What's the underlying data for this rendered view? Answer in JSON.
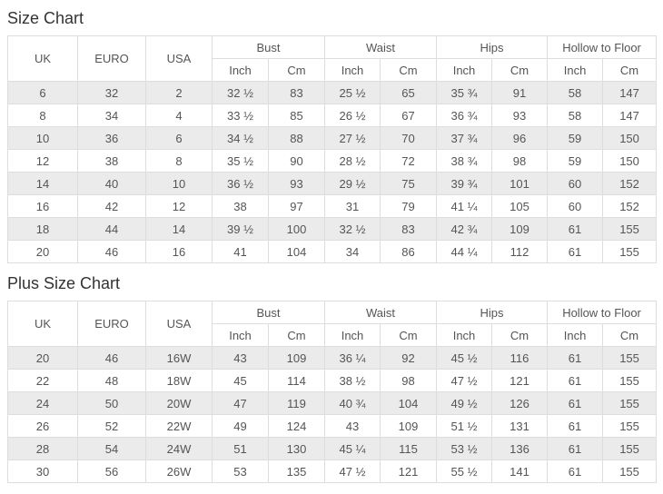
{
  "colors": {
    "background": "#ffffff",
    "stripe": "#ebebeb",
    "border": "#dddddd",
    "cell_text": "#555555",
    "title_text": "#333333"
  },
  "headers": {
    "uk": "UK",
    "euro": "EURO",
    "usa": "USA",
    "bust": "Bust",
    "waist": "Waist",
    "hips": "Hips",
    "hollow_to_floor": "Hollow to Floor",
    "inch": "Inch",
    "cm": "Cm"
  },
  "size_chart": {
    "title": "Size Chart",
    "rows": [
      [
        "6",
        "32",
        "2",
        "32 ½",
        "83",
        "25 ½",
        "65",
        "35 ¾",
        "91",
        "58",
        "147"
      ],
      [
        "8",
        "34",
        "4",
        "33 ½",
        "85",
        "26 ½",
        "67",
        "36 ¾",
        "93",
        "58",
        "147"
      ],
      [
        "10",
        "36",
        "6",
        "34 ½",
        "88",
        "27 ½",
        "70",
        "37 ¾",
        "96",
        "59",
        "150"
      ],
      [
        "12",
        "38",
        "8",
        "35 ½",
        "90",
        "28 ½",
        "72",
        "38 ¾",
        "98",
        "59",
        "150"
      ],
      [
        "14",
        "40",
        "10",
        "36 ½",
        "93",
        "29 ½",
        "75",
        "39 ¾",
        "101",
        "60",
        "152"
      ],
      [
        "16",
        "42",
        "12",
        "38",
        "97",
        "31",
        "79",
        "41 ¼",
        "105",
        "60",
        "152"
      ],
      [
        "18",
        "44",
        "14",
        "39 ½",
        "100",
        "32 ½",
        "83",
        "42 ¾",
        "109",
        "61",
        "155"
      ],
      [
        "20",
        "46",
        "16",
        "41",
        "104",
        "34",
        "86",
        "44 ¼",
        "112",
        "61",
        "155"
      ]
    ]
  },
  "plus_size_chart": {
    "title": "Plus Size Chart",
    "rows": [
      [
        "20",
        "46",
        "16W",
        "43",
        "109",
        "36 ¼",
        "92",
        "45 ½",
        "116",
        "61",
        "155"
      ],
      [
        "22",
        "48",
        "18W",
        "45",
        "114",
        "38 ½",
        "98",
        "47 ½",
        "121",
        "61",
        "155"
      ],
      [
        "24",
        "50",
        "20W",
        "47",
        "119",
        "40 ¾",
        "104",
        "49 ½",
        "126",
        "61",
        "155"
      ],
      [
        "26",
        "52",
        "22W",
        "49",
        "124",
        "43",
        "109",
        "51 ½",
        "131",
        "61",
        "155"
      ],
      [
        "28",
        "54",
        "24W",
        "51",
        "130",
        "45 ¼",
        "115",
        "53 ½",
        "136",
        "61",
        "155"
      ],
      [
        "30",
        "56",
        "26W",
        "53",
        "135",
        "47 ½",
        "121",
        "55 ½",
        "141",
        "61",
        "155"
      ]
    ]
  }
}
